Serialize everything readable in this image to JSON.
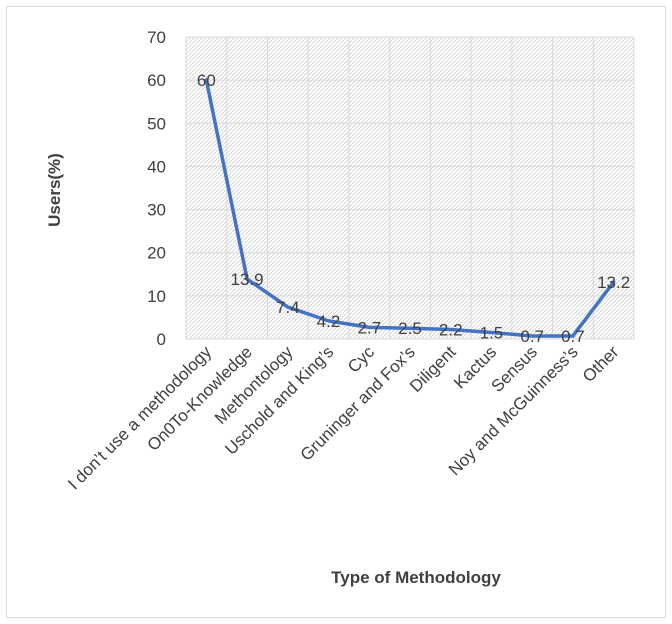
{
  "chart_data": {
    "type": "line",
    "title": "",
    "xlabel": "Type of Methodology",
    "ylabel": "Users(%)",
    "ylim": [
      0,
      70
    ],
    "yticks": [
      0,
      10,
      20,
      30,
      40,
      50,
      60,
      70
    ],
    "grid": true,
    "legend": "none",
    "categories": [
      "I don’t use a methodology",
      "On0To-Knowledge",
      "Methontology",
      "Uschold and King’s",
      "Cyc",
      "Gruninger and Fox’s",
      "Diligent",
      "Kactus",
      "Sensus",
      "Noy and McGuinness’s",
      "Other"
    ],
    "series": [
      {
        "values": [
          60,
          13.9,
          7.4,
          4.2,
          2.7,
          2.5,
          2.2,
          1.5,
          0.7,
          0.7,
          13.2
        ],
        "labels": [
          "60",
          "13.9",
          "7.4",
          "4.2",
          "2.7",
          "2.5",
          "2.2",
          "1.5",
          "0.7",
          "0.7",
          "13.2"
        ],
        "color": "#4472c4"
      }
    ],
    "colors": {
      "line": "#4472c4",
      "grid": "#d9d9d9",
      "text": "#404040"
    }
  }
}
